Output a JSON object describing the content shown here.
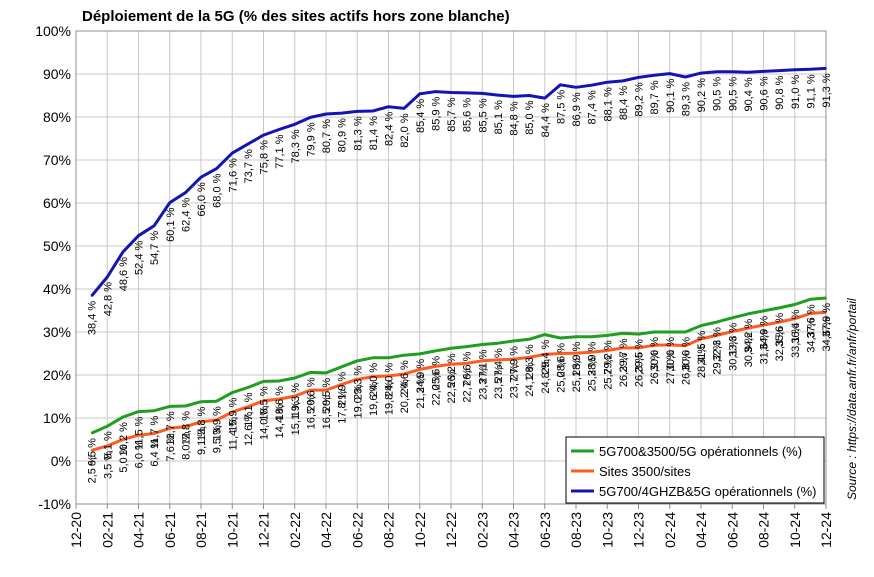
{
  "chart_data": {
    "type": "line",
    "title": "Déploiement de la 5G (% des sites actifs hors zone blanche)",
    "source_note": "Source : https://data.anfr.fr/anfr/portail",
    "xlabel": "",
    "ylabel": "",
    "ylim": [
      -10,
      100
    ],
    "y_ticks": [
      "-10%",
      "0%",
      "10%",
      "20%",
      "30%",
      "40%",
      "50%",
      "60%",
      "70%",
      "80%",
      "90%",
      "100%"
    ],
    "y_tick_values": [
      -10,
      0,
      10,
      20,
      30,
      40,
      50,
      60,
      70,
      80,
      90,
      100
    ],
    "grid": true,
    "legend_position": "bottom-right",
    "x": [
      "01-21",
      "02-21",
      "03-21",
      "04-21",
      "05-21",
      "06-21",
      "07-21",
      "08-21",
      "09-21",
      "10-21",
      "11-21",
      "12-21",
      "01-22",
      "02-22",
      "03-22",
      "04-22",
      "05-22",
      "06-22",
      "07-22",
      "08-22",
      "09-22",
      "10-22",
      "11-22",
      "12-22",
      "01-23",
      "02-23",
      "03-23",
      "04-23",
      "05-23",
      "06-23",
      "07-23",
      "08-23",
      "09-23",
      "10-23",
      "11-23",
      "12-23",
      "01-24",
      "02-24",
      "03-24",
      "04-24",
      "05-24",
      "06-24",
      "07-24",
      "08-24",
      "09-24",
      "10-24",
      "11-24",
      "12-24"
    ],
    "x_ticks": [
      "12-20",
      "02-21",
      "04-21",
      "06-21",
      "08-21",
      "10-21",
      "12-21",
      "02-22",
      "04-22",
      "06-22",
      "08-22",
      "10-22",
      "12-22",
      "02-23",
      "04-23",
      "06-23",
      "08-23",
      "10-23",
      "12-23",
      "02-24",
      "04-24",
      "06-24",
      "08-24",
      "10-24",
      "12-24"
    ],
    "series": [
      {
        "name": "5G700&3500/5G opérationnels (%)",
        "color": "#1f9e1f",
        "values": [
          6.5,
          8.1,
          10.2,
          11.5,
          11.7,
          12.7,
          12.8,
          13.8,
          13.9,
          15.9,
          17.1,
          18.5,
          18.6,
          19.3,
          20.6,
          20.5,
          21.9,
          23.3,
          24.0,
          24.0,
          24.6,
          24.9,
          25.6,
          26.2,
          26.6,
          27.1,
          27.4,
          27.9,
          28.3,
          29.4,
          28.6,
          28.9,
          28.9,
          29.2,
          29.7,
          29.5,
          30.0,
          30.0,
          30.0,
          31.5,
          32.3,
          33.3,
          34.2,
          34.9,
          35.6,
          36.4,
          37.6,
          37.9
        ],
        "labels": [
          "6,5 %",
          "8,1 %",
          "10,2 %",
          "11,5 %",
          "11,7 %",
          "12,7 %",
          "12,8 %",
          "13,8 %",
          "13,9 %",
          "15,9 %",
          "17,1 %",
          "18,5 %",
          "18,6 %",
          "19,3 %",
          "20,6 %",
          "20,5 %",
          "21,9 %",
          "23,3 %",
          "24,0 %",
          "24,0 %",
          "24,6 %",
          "24,9 %",
          "25,6 %",
          "26,2 %",
          "26,6 %",
          "27,1 %",
          "27,4 %",
          "27,9 %",
          "28,3 %",
          "29,4 %",
          "28,6 %",
          "28,9 %",
          "28,9 %",
          "29,2 %",
          "29,7 %",
          "29,5 %",
          "30,0 %",
          "30,0 %",
          "30,0 %",
          "31,5 %",
          "32,3 %",
          "33,3 %",
          "34,2 %",
          "34,9 %",
          "35,6 %",
          "36,4 %",
          "37,6 %",
          "37,9 %"
        ]
      },
      {
        "name": "Sites 3500/sites",
        "color": "#ff5a1f",
        "values": [
          2.5,
          3.5,
          5.0,
          6.0,
          6.4,
          7.6,
          8.0,
          9.1,
          9.5,
          11.4,
          12.6,
          14.0,
          14.4,
          15.1,
          16.5,
          16.5,
          17.8,
          19.0,
          19.6,
          19.8,
          20.2,
          21.3,
          22.0,
          22.5,
          22.7,
          23.3,
          23.5,
          23.7,
          24.1,
          24.8,
          25.0,
          25.1,
          25.3,
          25.7,
          26.3,
          26.3,
          26.9,
          27.0,
          26.8,
          28.4,
          29.2,
          30.1,
          30.9,
          31.6,
          32.3,
          33.1,
          34.3,
          34.6
        ],
        "labels": [
          "2,5 %",
          "3,5 %",
          "5,0 %",
          "6,0 %",
          "6,4 %",
          "7,6 %",
          "8,0 %",
          "9,1 %",
          "9,5 %",
          "11,4 %",
          "12,6 %",
          "14,0 %",
          "14,4 %",
          "15,1 %",
          "16,5 %",
          "16,5 %",
          "17,8 %",
          "19,0 %",
          "19,6 %",
          "19,8 %",
          "20,2 %",
          "21,3 %",
          "22,0 %",
          "22,5 %",
          "22,7 %",
          "23,3 %",
          "23,5 %",
          "23,7 %",
          "24,1 %",
          "24,8 %",
          "25,0 %",
          "25,1 %",
          "25,3 %",
          "25,7 %",
          "26,3 %",
          "26,3 %",
          "26,9 %",
          "27,0 %",
          "26,8 %",
          "28,4 %",
          "29,2 %",
          "30,1 %",
          "30,9 %",
          "31,6 %",
          "32,3 %",
          "33,1 %",
          "34,3 %",
          "34,6 %"
        ]
      },
      {
        "name": "5G700/4GHZB&5G opérationnels (%)",
        "color": "#1414b4",
        "values": [
          38.4,
          42.8,
          48.6,
          52.4,
          54.7,
          60.1,
          62.4,
          66.0,
          68.0,
          71.6,
          73.7,
          75.8,
          77.1,
          78.3,
          79.9,
          80.7,
          80.9,
          81.3,
          81.4,
          82.4,
          82.0,
          85.4,
          85.9,
          85.7,
          85.6,
          85.5,
          85.1,
          84.8,
          85.0,
          84.4,
          87.5,
          86.9,
          87.4,
          88.1,
          88.4,
          89.2,
          89.7,
          90.1,
          89.3,
          90.2,
          90.5,
          90.5,
          90.4,
          90.6,
          90.8,
          91.0,
          91.1,
          91.3
        ],
        "labels": [
          "38,4 %",
          "42,8 %",
          "48,6 %",
          "52,4 %",
          "54,7 %",
          "60,1 %",
          "62,4 %",
          "66,0 %",
          "68,0 %",
          "71,6 %",
          "73,7 %",
          "75,8 %",
          "77,1 %",
          "78,3 %",
          "79,9 %",
          "80,7 %",
          "80,9 %",
          "81,3 %",
          "81,4 %",
          "82,4 %",
          "82,0 %",
          "85,4 %",
          "85,9 %",
          "85,7 %",
          "85,6 %",
          "85,5 %",
          "85,1 %",
          "84,8 %",
          "85,0 %",
          "84,4 %",
          "87,5 %",
          "86,9 %",
          "87,4 %",
          "88,1 %",
          "88,4 %",
          "89,2 %",
          "89,7 %",
          "90,1 %",
          "89,3 %",
          "90,2 %",
          "90,5 %",
          "90,5 %",
          "90,4 %",
          "90,6 %",
          "90,8 %",
          "91,0 %",
          "91,1 %",
          "91,3 %"
        ]
      }
    ]
  }
}
